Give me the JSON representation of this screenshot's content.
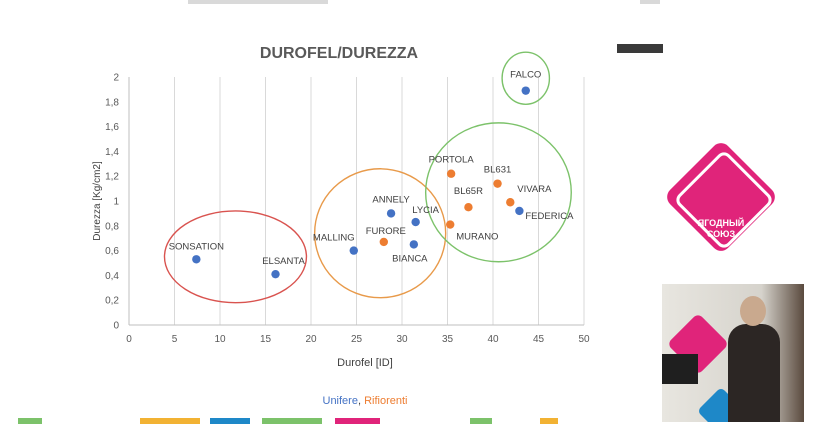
{
  "chart_data": {
    "type": "scatter",
    "title": "DUROFEL/DUREZZA",
    "xlabel": "Durofel [ID]",
    "ylabel": "Durezza [Kg/cm2]",
    "xlim": [
      0,
      50
    ],
    "ylim": [
      0,
      2
    ],
    "x_ticks": [
      "0",
      "5",
      "10",
      "15",
      "20",
      "25",
      "30",
      "35",
      "40",
      "45",
      "50"
    ],
    "y_ticks": [
      "0",
      "0,2",
      "0,4",
      "0,6",
      "0,8",
      "1",
      "1,2",
      "1,4",
      "1,6",
      "1,8",
      "2"
    ],
    "grid": "vertical",
    "legend": {
      "placement": "bottom",
      "unifere": "Unifere",
      "separator": ", ",
      "rifiorenti": "Rifiorenti"
    },
    "series": [
      {
        "name": "Unifere",
        "color": "#4472c4",
        "points": [
          {
            "label": "SONSATION",
            "x": 7.4,
            "y": 0.53
          },
          {
            "label": "ELSANTA",
            "x": 16.1,
            "y": 0.41
          },
          {
            "label": "MALLING",
            "x": 24.7,
            "y": 0.6
          },
          {
            "label": "ANNELY",
            "x": 28.8,
            "y": 0.9
          },
          {
            "label": "LYCIA",
            "x": 31.5,
            "y": 0.83
          },
          {
            "label": "BIANCA",
            "x": 31.3,
            "y": 0.65
          },
          {
            "label": "FEDERICA",
            "x": 42.9,
            "y": 0.92
          },
          {
            "label": "FALCO",
            "x": 43.6,
            "y": 1.89
          }
        ]
      },
      {
        "name": "Rifiorenti",
        "color": "#ed7d31",
        "points": [
          {
            "label": "FURORE",
            "x": 28.0,
            "y": 0.67
          },
          {
            "label": "PORTOLA",
            "x": 35.4,
            "y": 1.22
          },
          {
            "label": "BL631",
            "x": 40.5,
            "y": 1.14
          },
          {
            "label": "BL65R",
            "x": 37.3,
            "y": 0.95
          },
          {
            "label": "VIVARA",
            "x": 41.9,
            "y": 0.99
          },
          {
            "label": "MURANO",
            "x": 35.3,
            "y": 0.81
          }
        ]
      }
    ],
    "clusters": [
      {
        "name": "red",
        "color": "#d9534f",
        "cx": 11.7,
        "cy": 0.55,
        "rx": 7.8,
        "ry": 0.37
      },
      {
        "name": "orange",
        "color": "#e89a4a",
        "cx": 27.6,
        "cy": 0.74,
        "rx": 7.2,
        "ry": 0.52
      },
      {
        "name": "green",
        "color": "#7cc26a",
        "cx": 40.6,
        "cy": 1.07,
        "rx": 8.0,
        "ry": 0.56
      },
      {
        "name": "green-small",
        "color": "#7cc26a",
        "cx": 43.6,
        "cy": 1.99,
        "rx": 2.6,
        "ry": 0.21
      }
    ]
  },
  "brand": {
    "line1": "ЯГОДНЫЙ",
    "line2": "СОЮЗ"
  }
}
